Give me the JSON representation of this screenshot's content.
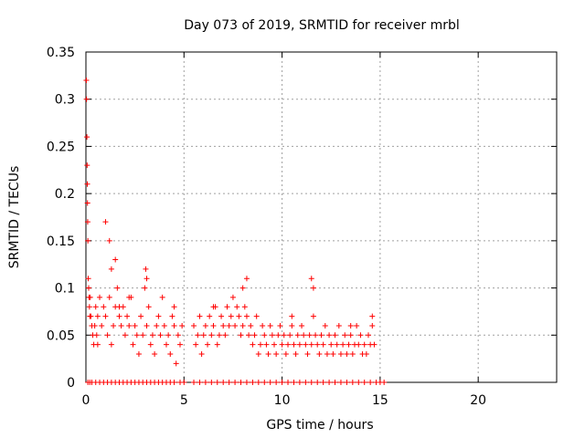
{
  "chart_data": {
    "type": "scatter",
    "title": "Day 073 of 2019, SRMTID for receiver mrbl",
    "xlabel": "GPS time / hours",
    "ylabel": "SRMTID / TECUs",
    "xlim": [
      0,
      24
    ],
    "ylim": [
      0,
      0.35
    ],
    "x_ticks": [
      0,
      5,
      10,
      15,
      20
    ],
    "x_tick_labels": [
      "0",
      "5",
      "10",
      "15",
      "20"
    ],
    "y_ticks": [
      0,
      0.05,
      0.1,
      0.15,
      0.2,
      0.25,
      0.3,
      0.35
    ],
    "y_tick_labels": [
      "0",
      "0.05",
      "0.1",
      "0.15",
      "0.2",
      "0.25",
      "0.3",
      "0.35"
    ],
    "grid": true,
    "marker": "+",
    "color": "#ff0000",
    "series": [
      {
        "name": "SRMTID",
        "x": [
          0.02,
          0.03,
          0.05,
          0.06,
          0.07,
          0.08,
          0.09,
          0.1,
          0.12,
          0.14,
          0.16,
          0.18,
          0.2,
          0.22,
          0.25,
          0.3,
          0.35,
          0.4,
          0.45,
          0.5,
          0.55,
          0.6,
          0.7,
          0.8,
          0.9,
          1.0,
          1.1,
          1.2,
          1.3,
          1.4,
          1.5,
          1.6,
          1.7,
          1.8,
          1.9,
          2.0,
          2.1,
          2.2,
          2.3,
          2.4,
          2.5,
          2.6,
          2.7,
          2.8,
          2.9,
          3.0,
          3.1,
          3.2,
          3.3,
          3.4,
          3.5,
          3.6,
          3.7,
          3.8,
          3.9,
          4.0,
          4.1,
          4.2,
          4.3,
          4.4,
          4.5,
          4.6,
          4.7,
          4.8,
          4.9,
          5.5,
          5.6,
          5.7,
          5.8,
          5.9,
          6.0,
          6.1,
          6.2,
          6.3,
          6.4,
          6.5,
          6.6,
          6.7,
          6.8,
          6.9,
          7.0,
          7.1,
          7.2,
          7.3,
          7.4,
          7.5,
          7.6,
          7.7,
          7.8,
          7.9,
          8.0,
          8.1,
          8.2,
          8.3,
          8.4,
          8.5,
          8.6,
          8.7,
          8.8,
          8.9,
          9.0,
          9.1,
          9.2,
          9.3,
          9.4,
          9.5,
          9.6,
          9.7,
          9.8,
          9.9,
          10.0,
          10.1,
          10.2,
          10.3,
          10.4,
          10.5,
          10.6,
          10.7,
          10.8,
          10.9,
          11.0,
          11.1,
          11.2,
          11.3,
          11.4,
          11.5,
          11.6,
          11.7,
          11.8,
          11.9,
          12.0,
          12.1,
          12.2,
          12.3,
          12.4,
          12.5,
          12.6,
          12.7,
          12.8,
          12.9,
          13.0,
          13.1,
          13.2,
          13.3,
          13.4,
          13.5,
          13.6,
          13.7,
          13.8,
          13.9,
          14.0,
          14.1,
          14.2,
          14.3,
          14.4,
          14.5,
          14.6,
          14.7,
          3.05,
          3.1,
          1.0,
          1.2,
          1.5,
          1.7,
          8.0,
          8.2,
          11.5,
          11.6,
          1.3,
          0.6,
          2.2,
          4.5,
          6.5,
          10.5,
          13.5,
          14.6
        ],
        "y": [
          0.32,
          0.3,
          0.26,
          0.23,
          0.21,
          0.19,
          0.17,
          0.15,
          0.11,
          0.1,
          0.09,
          0.08,
          0.07,
          0.09,
          0.07,
          0.06,
          0.05,
          0.04,
          0.06,
          0.08,
          0.05,
          0.07,
          0.09,
          0.06,
          0.08,
          0.07,
          0.05,
          0.09,
          0.12,
          0.06,
          0.08,
          0.1,
          0.07,
          0.06,
          0.08,
          0.05,
          0.07,
          0.06,
          0.09,
          0.04,
          0.06,
          0.05,
          0.03,
          0.07,
          0.05,
          0.1,
          0.06,
          0.08,
          0.04,
          0.05,
          0.03,
          0.06,
          0.07,
          0.05,
          0.09,
          0.06,
          0.04,
          0.05,
          0.03,
          0.07,
          0.06,
          0.02,
          0.05,
          0.04,
          0.06,
          0.06,
          0.04,
          0.05,
          0.07,
          0.03,
          0.05,
          0.06,
          0.04,
          0.07,
          0.05,
          0.06,
          0.08,
          0.04,
          0.05,
          0.07,
          0.06,
          0.05,
          0.08,
          0.06,
          0.07,
          0.09,
          0.06,
          0.08,
          0.07,
          0.05,
          0.06,
          0.08,
          0.07,
          0.05,
          0.06,
          0.04,
          0.05,
          0.07,
          0.03,
          0.04,
          0.06,
          0.05,
          0.04,
          0.03,
          0.06,
          0.05,
          0.04,
          0.03,
          0.05,
          0.06,
          0.04,
          0.05,
          0.03,
          0.04,
          0.05,
          0.06,
          0.04,
          0.03,
          0.05,
          0.04,
          0.06,
          0.05,
          0.04,
          0.03,
          0.05,
          0.04,
          0.07,
          0.05,
          0.04,
          0.03,
          0.05,
          0.04,
          0.06,
          0.03,
          0.05,
          0.04,
          0.03,
          0.05,
          0.04,
          0.06,
          0.03,
          0.04,
          0.05,
          0.03,
          0.04,
          0.05,
          0.03,
          0.04,
          0.06,
          0.04,
          0.05,
          0.03,
          0.04,
          0.03,
          0.05,
          0.04,
          0.06,
          0.04,
          0.12,
          0.11,
          0.17,
          0.15,
          0.13,
          0.08,
          0.1,
          0.11,
          0.11,
          0.1,
          0.04,
          0.04,
          0.09,
          0.08,
          0.08,
          0.07,
          0.06,
          0.07
        ],
        "zero_x": [
          0.1,
          0.2,
          0.3,
          0.5,
          0.7,
          0.9,
          1.1,
          1.3,
          1.5,
          1.7,
          1.9,
          2.1,
          2.3,
          2.5,
          2.7,
          2.9,
          3.1,
          3.3,
          3.5,
          3.7,
          3.9,
          4.1,
          4.3,
          4.5,
          4.8,
          5.0,
          5.5,
          5.8,
          6.1,
          6.4,
          6.7,
          7.0,
          7.3,
          7.6,
          7.9,
          8.2,
          8.5,
          8.8,
          9.1,
          9.4,
          9.7,
          10.0,
          10.3,
          10.6,
          10.9,
          11.2,
          11.5,
          11.8,
          12.1,
          12.4,
          12.7,
          13.0,
          13.3,
          13.6,
          13.9,
          14.2,
          14.5,
          14.8,
          15.0,
          15.2
        ]
      }
    ]
  }
}
